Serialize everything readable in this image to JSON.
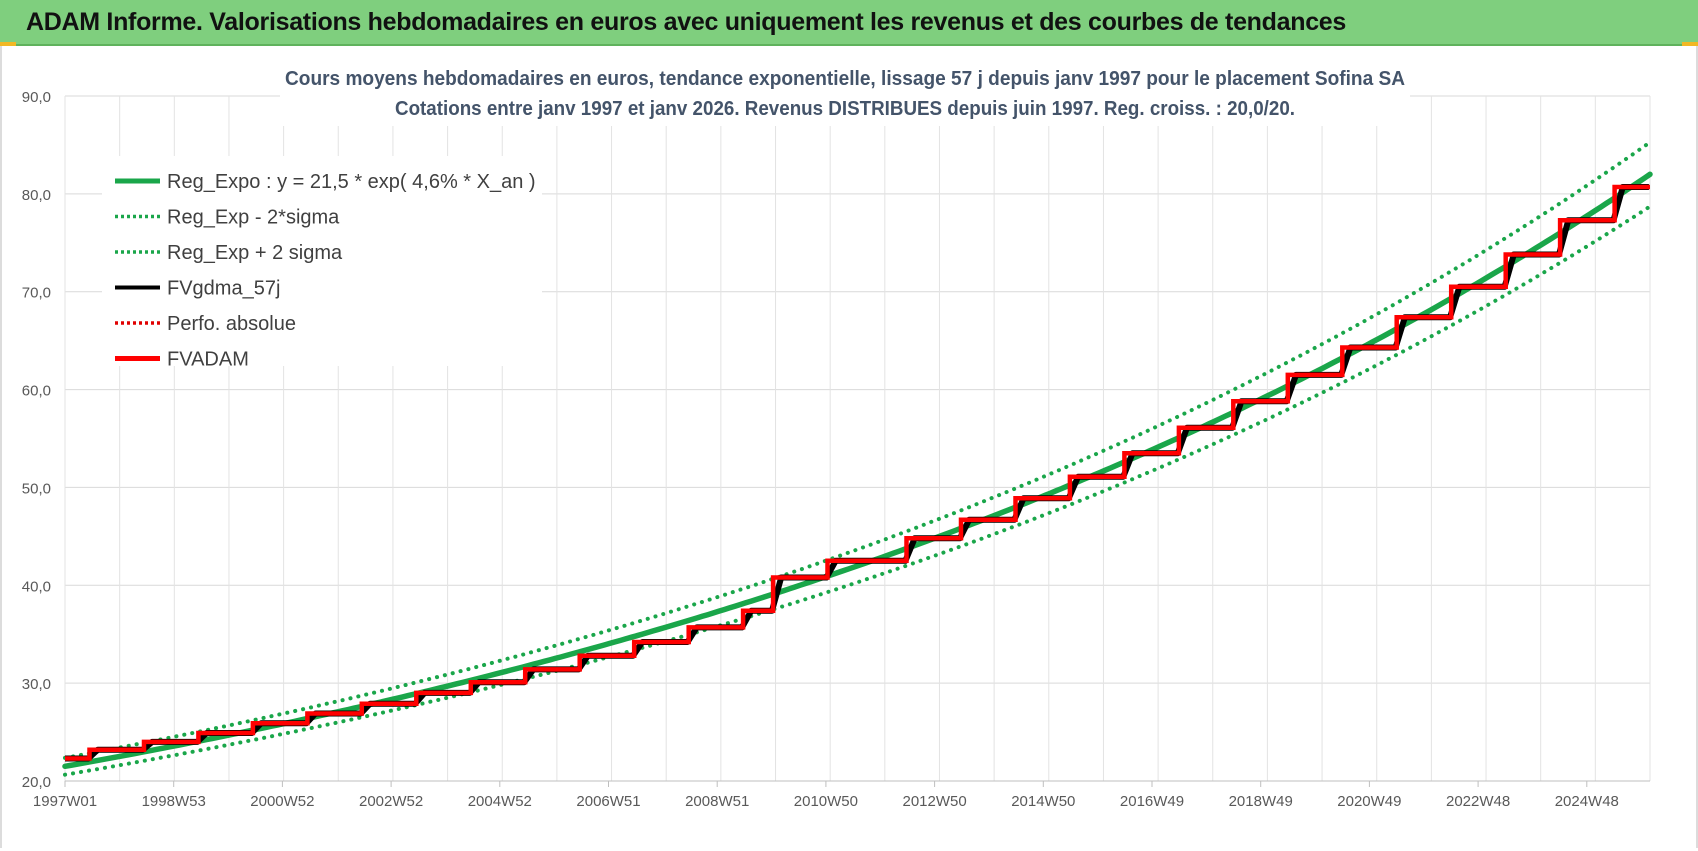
{
  "header": {
    "title": "ADAM Informe. Valorisations hebdomadaires en euros avec uniquement les revenus et des courbes de tendances"
  },
  "colors": {
    "header_bg": "#7fcf7e",
    "reg_green": "#1aa64a",
    "band_green": "#1aa64a",
    "fvgdma_black": "#000000",
    "perfo_red": "#e00000",
    "fvadam_red": "#ff0000",
    "title_text": "#44546a"
  },
  "chart_data": {
    "type": "line",
    "title_lines": [
      "Cours moyens hebdomadaires en euros, tendance exponentielle, lissage 57 j depuis janv 1997 pour le placement Sofina SA",
      "Cotations entre janv 1997 et janv 2026. Revenus DISTRIBUES depuis juin 1997. Reg. croiss. : 20,0/20."
    ],
    "xlabel": "",
    "ylabel": "",
    "ylim": [
      20,
      90
    ],
    "yticks": [
      "20,0",
      "30,0",
      "40,0",
      "50,0",
      "60,0",
      "70,0",
      "80,0",
      "90,0"
    ],
    "x_tick_labels": [
      "1997W01",
      "1998W53",
      "2000W52",
      "2002W52",
      "2004W52",
      "2006W51",
      "2008W51",
      "2010W50",
      "2012W50",
      "2014W50",
      "2016W49",
      "2018W49",
      "2020W49",
      "2022W48",
      "2024W48"
    ],
    "xlim_years": [
      1997.0,
      2026.1
    ],
    "grid": true,
    "legend_position": "top-left",
    "legend": [
      {
        "label": "Reg_Expo : y = 21,5 * exp( 4,6% *  X_an )",
        "style": "solid-thick",
        "color": "#1aa64a"
      },
      {
        "label": "Reg_Exp - 2*sigma",
        "style": "dotted",
        "color": "#1aa64a"
      },
      {
        "label": "Reg_Exp + 2 sigma",
        "style": "dotted",
        "color": "#1aa64a"
      },
      {
        "label": "FVgdma_57j",
        "style": "solid",
        "color": "#000000"
      },
      {
        "label": "Perfo. absolue",
        "style": "dotted",
        "color": "#e00000"
      },
      {
        "label": "FVADAM",
        "style": "solid-thick",
        "color": "#ff0000"
      }
    ],
    "regression": {
      "a": 21.5,
      "rate": 0.046
    },
    "band_factor": 0.04,
    "fvadam_steps": [
      {
        "x": 1997.0,
        "y": 22.3
      },
      {
        "x": 1997.45,
        "y": 23.2
      },
      {
        "x": 1998.45,
        "y": 24.0
      },
      {
        "x": 1999.45,
        "y": 24.9
      },
      {
        "x": 2000.45,
        "y": 25.9
      },
      {
        "x": 2001.45,
        "y": 26.9
      },
      {
        "x": 2002.45,
        "y": 27.9
      },
      {
        "x": 2003.45,
        "y": 29.0
      },
      {
        "x": 2004.45,
        "y": 30.1
      },
      {
        "x": 2005.45,
        "y": 31.4
      },
      {
        "x": 2006.45,
        "y": 32.8
      },
      {
        "x": 2007.45,
        "y": 34.2
      },
      {
        "x": 2008.45,
        "y": 35.7
      },
      {
        "x": 2009.45,
        "y": 37.4
      },
      {
        "x": 2010.0,
        "y": 40.8
      },
      {
        "x": 2011.0,
        "y": 42.5
      },
      {
        "x": 2012.45,
        "y": 44.8
      },
      {
        "x": 2013.45,
        "y": 46.7
      },
      {
        "x": 2014.45,
        "y": 48.9
      },
      {
        "x": 2015.45,
        "y": 51.1
      },
      {
        "x": 2016.45,
        "y": 53.5
      },
      {
        "x": 2017.45,
        "y": 56.1
      },
      {
        "x": 2018.45,
        "y": 58.8
      },
      {
        "x": 2019.45,
        "y": 61.5
      },
      {
        "x": 2020.45,
        "y": 64.3
      },
      {
        "x": 2021.45,
        "y": 67.4
      },
      {
        "x": 2022.45,
        "y": 70.5
      },
      {
        "x": 2023.45,
        "y": 73.8
      },
      {
        "x": 2024.45,
        "y": 77.3
      },
      {
        "x": 2025.45,
        "y": 80.7
      }
    ],
    "x_end": 2026.1
  }
}
